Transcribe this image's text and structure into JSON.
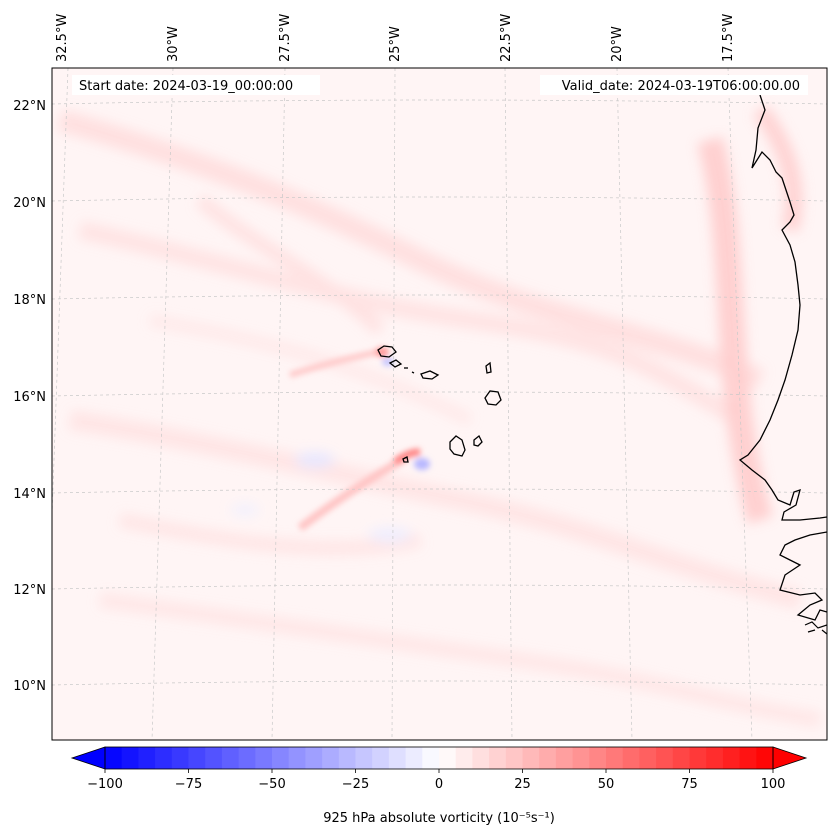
{
  "map": {
    "start_date_label": "Start date: 2024-03-19_00:00:00",
    "valid_date_label": "Valid_date: 2024-03-19T06:00:00.00",
    "lon_labels": [
      "32.5°W",
      "30°W",
      "27.5°W",
      "25°W",
      "22.5°W",
      "20°W",
      "17.5°W"
    ],
    "lat_labels": [
      "22°N",
      "20°N",
      "18°N",
      "16°N",
      "14°N",
      "12°N",
      "10°N"
    ],
    "coastline_color": "#000000"
  },
  "colorbar": {
    "label": "925 hPa absolute vorticity (10⁻⁵s⁻¹)",
    "tick_labels": [
      "−100",
      "−75",
      "−50",
      "−25",
      "0",
      "25",
      "50",
      "75",
      "100"
    ],
    "min": -100,
    "max": 100,
    "low_color": "#0000ff",
    "mid_color": "#ffffff",
    "high_color": "#ff0000",
    "extend": "both"
  }
}
